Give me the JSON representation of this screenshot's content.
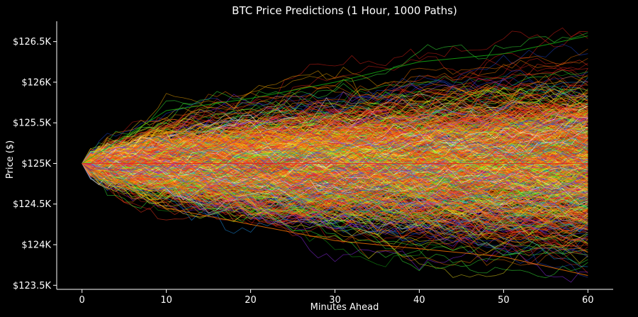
{
  "chart_data": {
    "type": "line",
    "title": "BTC Price Predictions (1 Hour, 1000 Paths)",
    "xlabel": "Minutes Ahead",
    "ylabel": "Price ($)",
    "xlim": [
      -3,
      63
    ],
    "ylim": [
      123450,
      126750
    ],
    "x_ticks": [
      {
        "value": 0,
        "label": "0"
      },
      {
        "value": 10,
        "label": "10"
      },
      {
        "value": 20,
        "label": "20"
      },
      {
        "value": 30,
        "label": "30"
      },
      {
        "value": 40,
        "label": "40"
      },
      {
        "value": 50,
        "label": "50"
      },
      {
        "value": 60,
        "label": "60"
      }
    ],
    "y_ticks": [
      {
        "value": 123500,
        "label": "$123.5K"
      },
      {
        "value": 124000,
        "label": "$124K"
      },
      {
        "value": 124500,
        "label": "$124.5K"
      },
      {
        "value": 125000,
        "label": "$125K"
      },
      {
        "value": 125500,
        "label": "$125.5K"
      },
      {
        "value": 126000,
        "label": "$126K"
      },
      {
        "value": 126500,
        "label": "$126.5K"
      }
    ],
    "grid": false,
    "legend": "none",
    "start_price": 125000,
    "n_paths": 1000,
    "x_start": 0,
    "x_end": 60,
    "path_colors": [
      "#e8231a",
      "#ff3b1f",
      "#ff7a00",
      "#ffb000",
      "#f5e51b",
      "#c8ff2a",
      "#3cff3c",
      "#17b814",
      "#1fa0ff",
      "#2048d8",
      "#9b30ff",
      "#ffffff"
    ],
    "representative_paths": [
      {
        "name": "upper-envelope",
        "x": [
          0,
          10,
          20,
          30,
          40,
          50,
          60
        ],
        "y": [
          125000,
          125650,
          125800,
          126000,
          126250,
          126350,
          126570
        ]
      },
      {
        "name": "lower-envelope",
        "x": [
          0,
          10,
          20,
          30,
          40,
          50,
          60
        ],
        "y": [
          125000,
          124450,
          124250,
          124050,
          123950,
          123850,
          123620
        ]
      },
      {
        "name": "median",
        "x": [
          0,
          10,
          20,
          30,
          40,
          50,
          60
        ],
        "y": [
          125000,
          125000,
          125000,
          125000,
          125000,
          125000,
          125000
        ]
      }
    ]
  },
  "colors": {
    "background": "#000000",
    "axis": "#ffffff",
    "text": "#ffffff"
  }
}
